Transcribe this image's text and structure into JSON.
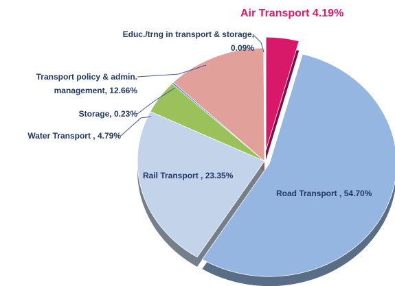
{
  "chart_data": {
    "type": "pie",
    "categories": [
      "Air Transport",
      "Road Transport ,",
      "Rail Transport ,",
      "Water Transport ,",
      "Storage,",
      "Transport policy & admin. management,",
      "Educ./trng in transport & storage,"
    ],
    "values": [
      4.19,
      54.7,
      23.35,
      4.79,
      0.23,
      12.66,
      0.09
    ],
    "value_labels": [
      "4.19%",
      "54.70%",
      "23.35%",
      "4.79%",
      "0.23%",
      "12.66%",
      "0.09%"
    ],
    "colors": [
      "#d8196a",
      "#95b6e0",
      "#c3d4ea",
      "#9bc25a",
      "#4a7fbf",
      "#e2a09b",
      "#5b7bbf"
    ]
  }
}
